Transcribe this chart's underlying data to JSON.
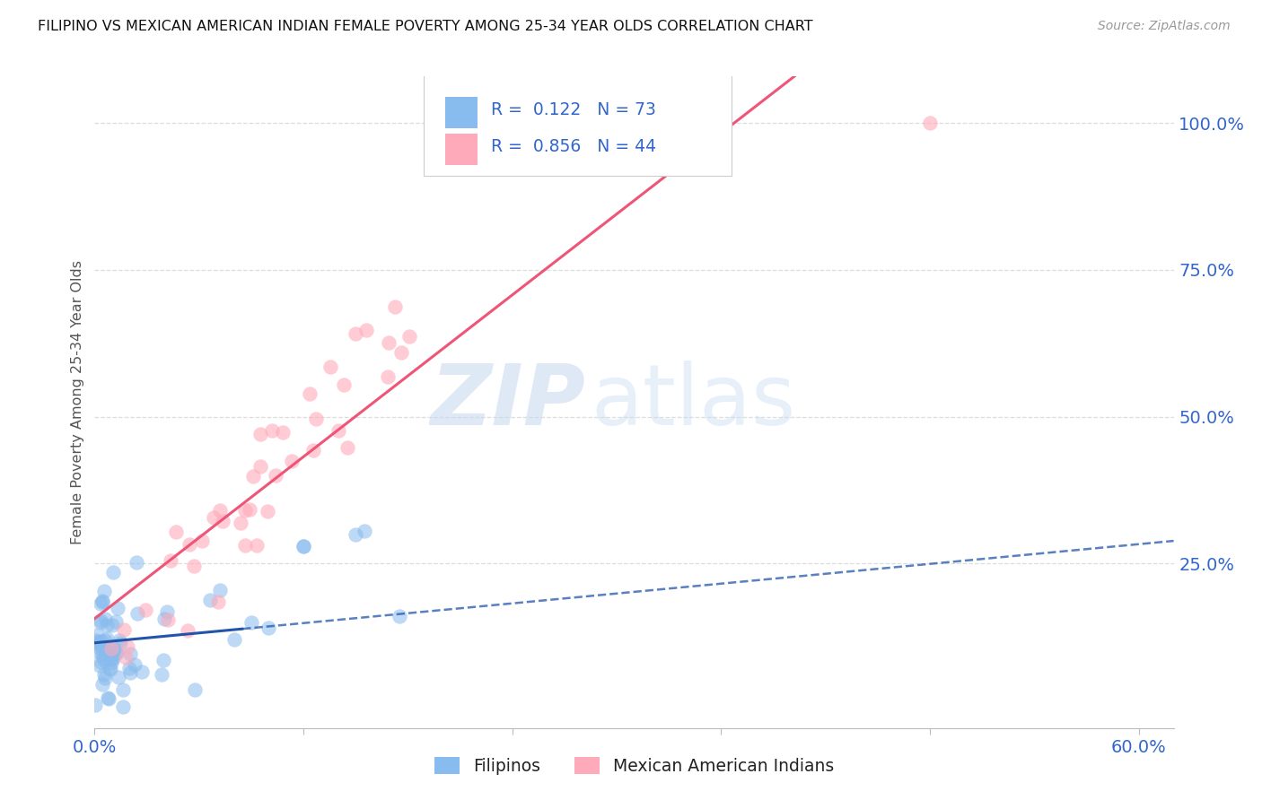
{
  "title": "FILIPINO VS MEXICAN AMERICAN INDIAN FEMALE POVERTY AMONG 25-34 YEAR OLDS CORRELATION CHART",
  "source": "Source: ZipAtlas.com",
  "ylabel": "Female Poverty Among 25-34 Year Olds",
  "xlim": [
    0.0,
    0.62
  ],
  "ylim": [
    -0.03,
    1.08
  ],
  "xtick_positions": [
    0.0,
    0.12,
    0.24,
    0.36,
    0.48,
    0.6
  ],
  "xticklabels": [
    "0.0%",
    "",
    "",
    "",
    "",
    "60.0%"
  ],
  "ytick_right_positions": [
    0.25,
    0.5,
    0.75,
    1.0
  ],
  "yticklabels_right": [
    "25.0%",
    "50.0%",
    "75.0%",
    "100.0%"
  ],
  "watermark_zip": "ZIP",
  "watermark_atlas": "atlas",
  "filipino_R": "0.122",
  "filipino_N": "73",
  "mexican_R": "0.856",
  "mexican_N": "44",
  "filipino_color": "#88bbee",
  "mexican_color": "#ffaabb",
  "filipino_line_color": "#2255aa",
  "mexican_line_color": "#ee5577",
  "legend_text_color": "#3366cc",
  "legend_label_1": "Filipinos",
  "legend_label_2": "Mexican American Indians",
  "title_color": "#111111",
  "source_color": "#999999",
  "axis_tick_color": "#3366cc",
  "ylabel_color": "#555555",
  "grid_color": "#dddddd",
  "grid_style": "--"
}
